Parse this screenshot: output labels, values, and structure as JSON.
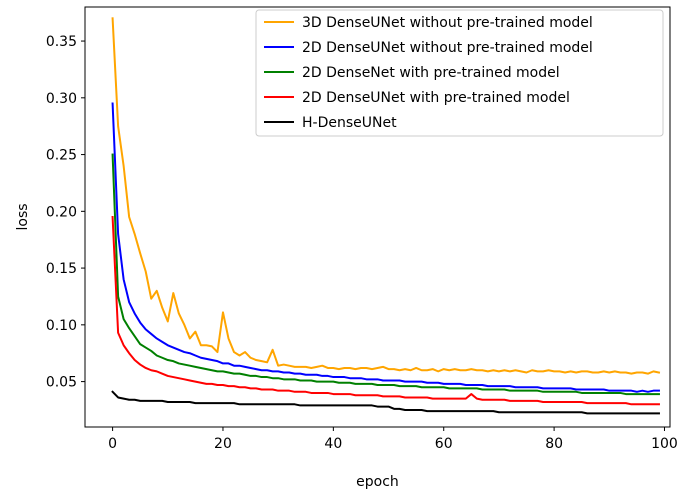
{
  "chart_data": {
    "type": "line",
    "title": "",
    "xlabel": "epoch",
    "ylabel": "loss",
    "xlim": [
      -5,
      101
    ],
    "ylim": [
      0.01,
      0.38
    ],
    "xticks": [
      0,
      20,
      40,
      60,
      80,
      100
    ],
    "xtick_labels": [
      "0",
      "20",
      "40",
      "60",
      "80",
      "100"
    ],
    "yticks": [
      0.05,
      0.1,
      0.15,
      0.2,
      0.25,
      0.3,
      0.35
    ],
    "ytick_labels": [
      "0.05",
      "0.10",
      "0.15",
      "0.20",
      "0.25",
      "0.30",
      "0.35"
    ],
    "grid": false,
    "legend_position": "top-right",
    "series": [
      {
        "name": "3D DenseUNet without pre-trained model",
        "color": "#FFA500",
        "x": [
          0,
          1,
          2,
          3,
          4,
          5,
          6,
          7,
          8,
          9,
          10,
          11,
          12,
          13,
          14,
          15,
          16,
          17,
          18,
          19,
          20,
          21,
          22,
          23,
          24,
          25,
          26,
          27,
          28,
          29,
          30,
          31,
          32,
          33,
          34,
          35,
          36,
          37,
          38,
          39,
          40,
          41,
          42,
          43,
          44,
          45,
          46,
          47,
          48,
          49,
          50,
          51,
          52,
          53,
          54,
          55,
          56,
          57,
          58,
          59,
          60,
          61,
          62,
          63,
          64,
          65,
          66,
          67,
          68,
          69,
          70,
          71,
          72,
          73,
          74,
          75,
          76,
          77,
          78,
          79,
          80,
          81,
          82,
          83,
          84,
          85,
          86,
          87,
          88,
          89,
          90,
          91,
          92,
          93,
          94,
          95,
          96,
          97,
          98,
          99
        ],
        "values": [
          0.37,
          0.275,
          0.24,
          0.195,
          0.18,
          0.163,
          0.147,
          0.123,
          0.13,
          0.115,
          0.103,
          0.128,
          0.11,
          0.1,
          0.088,
          0.094,
          0.082,
          0.082,
          0.081,
          0.076,
          0.111,
          0.088,
          0.076,
          0.073,
          0.076,
          0.071,
          0.069,
          0.068,
          0.067,
          0.078,
          0.064,
          0.065,
          0.064,
          0.063,
          0.063,
          0.063,
          0.062,
          0.063,
          0.064,
          0.062,
          0.062,
          0.061,
          0.062,
          0.062,
          0.061,
          0.062,
          0.062,
          0.061,
          0.062,
          0.063,
          0.061,
          0.061,
          0.06,
          0.061,
          0.06,
          0.062,
          0.06,
          0.06,
          0.061,
          0.059,
          0.061,
          0.06,
          0.061,
          0.06,
          0.06,
          0.061,
          0.06,
          0.06,
          0.059,
          0.06,
          0.059,
          0.06,
          0.059,
          0.06,
          0.059,
          0.058,
          0.06,
          0.059,
          0.059,
          0.06,
          0.059,
          0.059,
          0.058,
          0.059,
          0.058,
          0.059,
          0.059,
          0.058,
          0.058,
          0.059,
          0.058,
          0.059,
          0.058,
          0.058,
          0.057,
          0.058,
          0.058,
          0.057,
          0.059,
          0.058
        ]
      },
      {
        "name": "2D DenseUNet without pre-trained model",
        "color": "#0000FF",
        "x": [
          0,
          1,
          2,
          3,
          4,
          5,
          6,
          7,
          8,
          9,
          10,
          11,
          12,
          13,
          14,
          15,
          16,
          17,
          18,
          19,
          20,
          21,
          22,
          23,
          24,
          25,
          26,
          27,
          28,
          29,
          30,
          31,
          32,
          33,
          34,
          35,
          36,
          37,
          38,
          39,
          40,
          41,
          42,
          43,
          44,
          45,
          46,
          47,
          48,
          49,
          50,
          51,
          52,
          53,
          54,
          55,
          56,
          57,
          58,
          59,
          60,
          61,
          62,
          63,
          64,
          65,
          66,
          67,
          68,
          69,
          70,
          71,
          72,
          73,
          74,
          75,
          76,
          77,
          78,
          79,
          80,
          81,
          82,
          83,
          84,
          85,
          86,
          87,
          88,
          89,
          90,
          91,
          92,
          93,
          94,
          95,
          96,
          97,
          98,
          99
        ],
        "values": [
          0.295,
          0.18,
          0.14,
          0.12,
          0.11,
          0.102,
          0.096,
          0.092,
          0.088,
          0.085,
          0.082,
          0.08,
          0.078,
          0.076,
          0.075,
          0.073,
          0.071,
          0.07,
          0.069,
          0.068,
          0.066,
          0.066,
          0.064,
          0.064,
          0.063,
          0.062,
          0.061,
          0.06,
          0.06,
          0.059,
          0.059,
          0.058,
          0.058,
          0.057,
          0.057,
          0.056,
          0.056,
          0.056,
          0.055,
          0.055,
          0.054,
          0.054,
          0.054,
          0.053,
          0.053,
          0.053,
          0.052,
          0.052,
          0.052,
          0.051,
          0.051,
          0.051,
          0.051,
          0.05,
          0.05,
          0.05,
          0.05,
          0.049,
          0.049,
          0.049,
          0.048,
          0.048,
          0.048,
          0.048,
          0.047,
          0.047,
          0.047,
          0.047,
          0.046,
          0.046,
          0.046,
          0.046,
          0.046,
          0.045,
          0.045,
          0.045,
          0.045,
          0.045,
          0.044,
          0.044,
          0.044,
          0.044,
          0.044,
          0.044,
          0.043,
          0.043,
          0.043,
          0.043,
          0.043,
          0.043,
          0.042,
          0.042,
          0.042,
          0.042,
          0.042,
          0.041,
          0.042,
          0.041,
          0.042,
          0.042
        ]
      },
      {
        "name": "2D DenseNet with pre-trained model",
        "color": "#008000",
        "x": [
          0,
          1,
          2,
          3,
          4,
          5,
          6,
          7,
          8,
          9,
          10,
          11,
          12,
          13,
          14,
          15,
          16,
          17,
          18,
          19,
          20,
          21,
          22,
          23,
          24,
          25,
          26,
          27,
          28,
          29,
          30,
          31,
          32,
          33,
          34,
          35,
          36,
          37,
          38,
          39,
          40,
          41,
          42,
          43,
          44,
          45,
          46,
          47,
          48,
          49,
          50,
          51,
          52,
          53,
          54,
          55,
          56,
          57,
          58,
          59,
          60,
          61,
          62,
          63,
          64,
          65,
          66,
          67,
          68,
          69,
          70,
          71,
          72,
          73,
          74,
          75,
          76,
          77,
          78,
          79,
          80,
          81,
          82,
          83,
          84,
          85,
          86,
          87,
          88,
          89,
          90,
          91,
          92,
          93,
          94,
          95,
          96,
          97,
          98,
          99
        ],
        "values": [
          0.25,
          0.125,
          0.105,
          0.097,
          0.09,
          0.083,
          0.08,
          0.077,
          0.073,
          0.071,
          0.069,
          0.068,
          0.066,
          0.065,
          0.064,
          0.063,
          0.062,
          0.061,
          0.06,
          0.059,
          0.059,
          0.058,
          0.057,
          0.057,
          0.056,
          0.055,
          0.055,
          0.054,
          0.054,
          0.053,
          0.053,
          0.052,
          0.052,
          0.052,
          0.051,
          0.051,
          0.051,
          0.05,
          0.05,
          0.05,
          0.05,
          0.049,
          0.049,
          0.049,
          0.048,
          0.048,
          0.048,
          0.048,
          0.047,
          0.047,
          0.047,
          0.047,
          0.046,
          0.046,
          0.046,
          0.046,
          0.045,
          0.045,
          0.045,
          0.045,
          0.045,
          0.044,
          0.044,
          0.044,
          0.044,
          0.044,
          0.044,
          0.043,
          0.043,
          0.043,
          0.043,
          0.043,
          0.042,
          0.042,
          0.042,
          0.042,
          0.042,
          0.042,
          0.041,
          0.041,
          0.041,
          0.041,
          0.041,
          0.041,
          0.041,
          0.04,
          0.04,
          0.04,
          0.04,
          0.04,
          0.04,
          0.04,
          0.04,
          0.039,
          0.039,
          0.039,
          0.039,
          0.039,
          0.039,
          0.039
        ]
      },
      {
        "name": "2D DenseUNet with pre-trained model",
        "color": "#FF0000",
        "x": [
          0,
          1,
          2,
          3,
          4,
          5,
          6,
          7,
          8,
          9,
          10,
          11,
          12,
          13,
          14,
          15,
          16,
          17,
          18,
          19,
          20,
          21,
          22,
          23,
          24,
          25,
          26,
          27,
          28,
          29,
          30,
          31,
          32,
          33,
          34,
          35,
          36,
          37,
          38,
          39,
          40,
          41,
          42,
          43,
          44,
          45,
          46,
          47,
          48,
          49,
          50,
          51,
          52,
          53,
          54,
          55,
          56,
          57,
          58,
          59,
          60,
          61,
          62,
          63,
          64,
          65,
          66,
          67,
          68,
          69,
          70,
          71,
          72,
          73,
          74,
          75,
          76,
          77,
          78,
          79,
          80,
          81,
          82,
          83,
          84,
          85,
          86,
          87,
          88,
          89,
          90,
          91,
          92,
          93,
          94,
          95,
          96,
          97,
          98,
          99
        ],
        "values": [
          0.195,
          0.093,
          0.082,
          0.075,
          0.069,
          0.065,
          0.062,
          0.06,
          0.059,
          0.057,
          0.055,
          0.054,
          0.053,
          0.052,
          0.051,
          0.05,
          0.049,
          0.048,
          0.048,
          0.047,
          0.047,
          0.046,
          0.046,
          0.045,
          0.045,
          0.044,
          0.044,
          0.043,
          0.043,
          0.043,
          0.042,
          0.042,
          0.042,
          0.041,
          0.041,
          0.041,
          0.04,
          0.04,
          0.04,
          0.04,
          0.039,
          0.039,
          0.039,
          0.039,
          0.038,
          0.038,
          0.038,
          0.038,
          0.038,
          0.037,
          0.037,
          0.037,
          0.037,
          0.036,
          0.036,
          0.036,
          0.036,
          0.036,
          0.035,
          0.035,
          0.035,
          0.035,
          0.035,
          0.035,
          0.035,
          0.039,
          0.035,
          0.034,
          0.034,
          0.034,
          0.034,
          0.034,
          0.033,
          0.033,
          0.033,
          0.033,
          0.033,
          0.033,
          0.032,
          0.032,
          0.032,
          0.032,
          0.032,
          0.032,
          0.032,
          0.032,
          0.031,
          0.031,
          0.031,
          0.031,
          0.031,
          0.031,
          0.031,
          0.031,
          0.03,
          0.03,
          0.03,
          0.03,
          0.03,
          0.03
        ]
      },
      {
        "name": "H-DenseUNet",
        "color": "#000000",
        "x": [
          0,
          1,
          2,
          3,
          4,
          5,
          6,
          7,
          8,
          9,
          10,
          11,
          12,
          13,
          14,
          15,
          16,
          17,
          18,
          19,
          20,
          21,
          22,
          23,
          24,
          25,
          26,
          27,
          28,
          29,
          30,
          31,
          32,
          33,
          34,
          35,
          36,
          37,
          38,
          39,
          40,
          41,
          42,
          43,
          44,
          45,
          46,
          47,
          48,
          49,
          50,
          51,
          52,
          53,
          54,
          55,
          56,
          57,
          58,
          59,
          60,
          61,
          62,
          63,
          64,
          65,
          66,
          67,
          68,
          69,
          70,
          71,
          72,
          73,
          74,
          75,
          76,
          77,
          78,
          79,
          80,
          81,
          82,
          83,
          84,
          85,
          86,
          87,
          88,
          89,
          90,
          91,
          92,
          93,
          94,
          95,
          96,
          97,
          98,
          99
        ],
        "values": [
          0.041,
          0.036,
          0.035,
          0.034,
          0.034,
          0.033,
          0.033,
          0.033,
          0.033,
          0.033,
          0.032,
          0.032,
          0.032,
          0.032,
          0.032,
          0.031,
          0.031,
          0.031,
          0.031,
          0.031,
          0.031,
          0.031,
          0.031,
          0.03,
          0.03,
          0.03,
          0.03,
          0.03,
          0.03,
          0.03,
          0.03,
          0.03,
          0.03,
          0.03,
          0.029,
          0.029,
          0.029,
          0.029,
          0.029,
          0.029,
          0.029,
          0.029,
          0.029,
          0.029,
          0.029,
          0.029,
          0.029,
          0.029,
          0.028,
          0.028,
          0.028,
          0.026,
          0.026,
          0.025,
          0.025,
          0.025,
          0.025,
          0.024,
          0.024,
          0.024,
          0.024,
          0.024,
          0.024,
          0.024,
          0.024,
          0.024,
          0.024,
          0.024,
          0.024,
          0.024,
          0.023,
          0.023,
          0.023,
          0.023,
          0.023,
          0.023,
          0.023,
          0.023,
          0.023,
          0.023,
          0.023,
          0.023,
          0.023,
          0.023,
          0.023,
          0.023,
          0.022,
          0.022,
          0.022,
          0.022,
          0.022,
          0.022,
          0.022,
          0.022,
          0.022,
          0.022,
          0.022,
          0.022,
          0.022,
          0.022
        ]
      }
    ]
  }
}
